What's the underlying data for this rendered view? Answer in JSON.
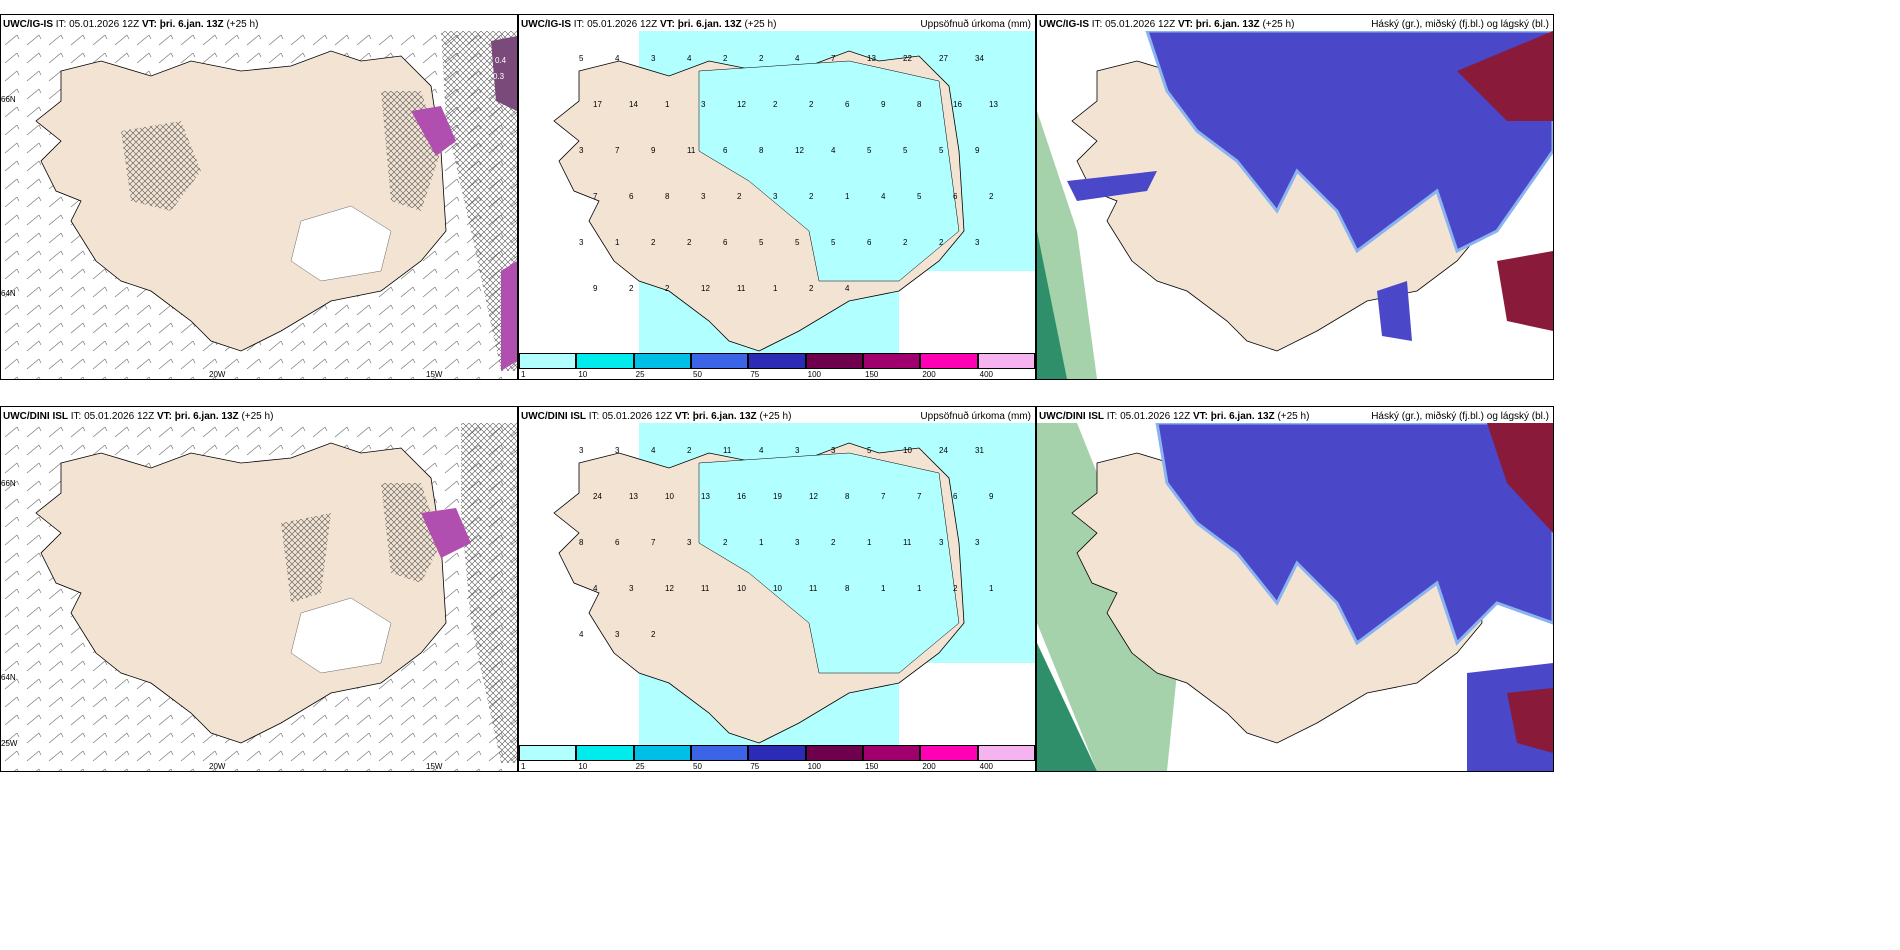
{
  "panels": [
    {
      "model": "UWC/IG-IS",
      "it": "IT: 05.01.2026 12Z",
      "vt_label": "VT:",
      "vt": "þri. 6.jan. 13Z",
      "lead": "(+25 h)",
      "right": "",
      "type": "wind"
    },
    {
      "model": "UWC/IG-IS",
      "it": "IT: 05.01.2026 12Z",
      "vt_label": "VT:",
      "vt": "þri. 6.jan. 13Z",
      "lead": "(+25 h)",
      "right": "Uppsöfnuð úrkoma (mm)",
      "type": "precip"
    },
    {
      "model": "UWC/IG-IS",
      "it": "IT: 05.01.2026 12Z",
      "vt_label": "VT:",
      "vt": "þri. 6.jan. 13Z",
      "lead": "(+25 h)",
      "right": "Háský (gr.), miðský (fj.bl.) og lágský (bl.)",
      "type": "cloud"
    },
    {
      "model": "UWC/DINI ISL",
      "it": "IT: 05.01.2026 12Z",
      "vt_label": "VT:",
      "vt": "þri. 6.jan. 13Z",
      "lead": "(+25 h)",
      "right": "",
      "type": "wind"
    },
    {
      "model": "UWC/DINI ISL",
      "it": "IT: 05.01.2026 12Z",
      "vt_label": "VT:",
      "vt": "þri. 6.jan. 13Z",
      "lead": "(+25 h)",
      "right": "Uppsöfnuð úrkoma (mm)",
      "type": "precip"
    },
    {
      "model": "UWC/DINI ISL",
      "it": "IT: 05.01.2026 12Z",
      "vt_label": "VT:",
      "vt": "þri. 6.jan. 13Z",
      "lead": "(+25 h)",
      "right": "Háský (gr.), miðský (fj.bl.) og lágský (bl.)",
      "type": "cloud"
    }
  ],
  "axis_labels": {
    "lon_20w": "20W",
    "lon_15w": "15W",
    "lat_66n": "66N",
    "lat_64n": "64N",
    "lon_25w": "25W"
  },
  "wind_extra_top": [
    "0.4",
    "0.3"
  ],
  "colorbar": {
    "labels": [
      "1",
      "10",
      "25",
      "50",
      "75",
      "100",
      "150",
      "200",
      "400"
    ],
    "colors": [
      "#b2ffff",
      "#00ebeb",
      "#00bfe6",
      "#3c64e6",
      "#2b2bb5",
      "#6e004e",
      "#a0006e",
      "#ff00b4",
      "#f5b4f0"
    ]
  },
  "colors": {
    "land": "#f2e3d3",
    "sea": "#ffffff",
    "precip_sea": "#b2ffff",
    "cloud_low": "#4a47c9",
    "cloud_mid": "#8ab3f0",
    "high_cloud": "#7fbf86",
    "purple": "#b04fb0"
  },
  "precip_top": [
    "5",
    "4",
    "3",
    "4",
    "2",
    "2",
    "4",
    "7",
    "13",
    "22",
    "27",
    "34",
    "17",
    "14",
    "1",
    "3",
    "12",
    "2",
    "2",
    "6",
    "9",
    "8",
    "16",
    "13",
    "3",
    "7",
    "9",
    "11",
    "6",
    "8",
    "12",
    "4",
    "5",
    "5",
    "5",
    "9",
    "7",
    "6",
    "8",
    "3",
    "2",
    "3",
    "2",
    "1",
    "4",
    "5",
    "6",
    "2",
    "3",
    "1",
    "2",
    "2",
    "6",
    "5",
    "5",
    "5",
    "6",
    "2",
    "2",
    "3",
    "9",
    "2",
    "2",
    "12",
    "11",
    "1",
    "2",
    "4"
  ],
  "precip_bottom": [
    "3",
    "3",
    "4",
    "2",
    "11",
    "4",
    "3",
    "3",
    "5",
    "10",
    "24",
    "31",
    "24",
    "13",
    "10",
    "13",
    "16",
    "19",
    "12",
    "8",
    "7",
    "7",
    "6",
    "9",
    "8",
    "6",
    "7",
    "3",
    "2",
    "1",
    "3",
    "2",
    "1",
    "11",
    "3",
    "3",
    "4",
    "3",
    "12",
    "11",
    "10",
    "10",
    "11",
    "8",
    "1",
    "1",
    "2",
    "1",
    "4",
    "3",
    "2"
  ]
}
